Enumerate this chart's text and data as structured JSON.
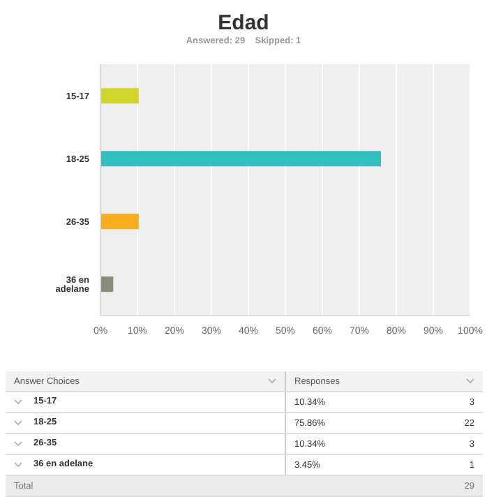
{
  "chart_data": {
    "type": "bar",
    "orientation": "horizontal",
    "title": "Edad",
    "subtitle": "Answered: 29    Skipped: 1",
    "categories": [
      "15-17",
      "18-25",
      "26-35",
      "36 en adelane"
    ],
    "values": [
      10.34,
      75.86,
      10.34,
      3.45
    ],
    "colors": [
      "#d0d52b",
      "#33bec0",
      "#f7ae1e",
      "#8a8a78"
    ],
    "xlim": [
      0,
      100
    ],
    "xticks": [
      {
        "value": 0,
        "label": "0%"
      },
      {
        "value": 10,
        "label": "10%"
      },
      {
        "value": 20,
        "label": "20%"
      },
      {
        "value": 30,
        "label": "30%"
      },
      {
        "value": 40,
        "label": "40%"
      },
      {
        "value": 50,
        "label": "50%"
      },
      {
        "value": 60,
        "label": "60%"
      },
      {
        "value": 70,
        "label": "70%"
      },
      {
        "value": 80,
        "label": "80%"
      },
      {
        "value": 90,
        "label": "90%"
      },
      {
        "value": 100,
        "label": "100%"
      }
    ],
    "grid": "x",
    "legend": false,
    "annotations": [
      "Answer Choices",
      "Responses",
      "10.34%",
      "75.86%",
      "10.34%",
      "3.45%",
      "3",
      "22",
      "3",
      "1",
      "Total",
      "29"
    ]
  }
}
